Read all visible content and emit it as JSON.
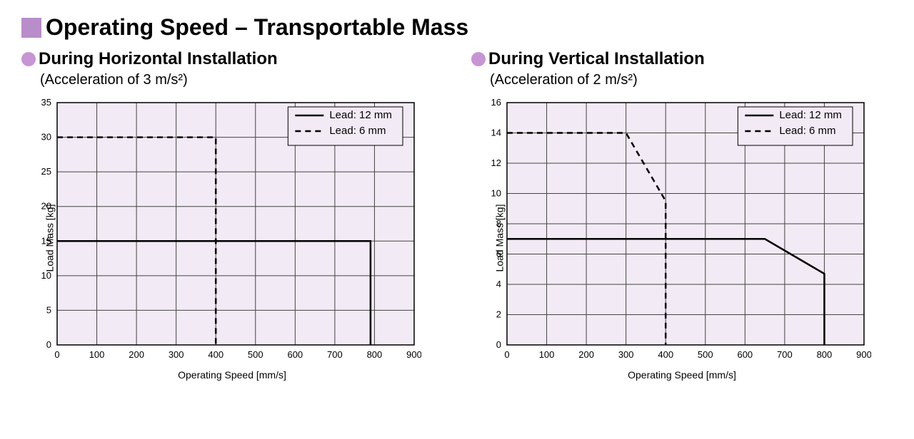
{
  "main_title": "Operating Speed – Transportable Mass",
  "bullet_square_color": "#b98dc9",
  "bullet_circle_color": "#c795d4",
  "background_color": "#ffffff",
  "plot_background": "#f2eaf4",
  "grid_color": "#444444",
  "axis_color": "#000000",
  "text_color": "#000000",
  "line_color": "#000000",
  "chart1": {
    "subtitle": "During Horizontal Installation",
    "subnote": "(Acceleration of 3 m/s²)",
    "type": "line",
    "xlabel": "Operating Speed [mm/s]",
    "ylabel": "Load Mass [kg]",
    "xlim": [
      0,
      900
    ],
    "ylim": [
      0,
      35
    ],
    "xtick_step": 100,
    "ytick_step": 5,
    "tick_fontsize": 13,
    "label_fontsize": 14,
    "line_width": 2.5,
    "dash_pattern": "8,6",
    "legend": {
      "x": 600,
      "y_top": 30,
      "items": [
        {
          "label": "Lead: 12 mm",
          "style": "solid"
        },
        {
          "label": "Lead: 6 mm",
          "style": "dashed"
        }
      ]
    },
    "series": [
      {
        "name": "Lead: 12 mm",
        "style": "solid",
        "points": [
          [
            0,
            15
          ],
          [
            790,
            15
          ],
          [
            790,
            0
          ]
        ]
      },
      {
        "name": "Lead: 6 mm",
        "style": "dashed",
        "points": [
          [
            0,
            30
          ],
          [
            400,
            30
          ],
          [
            400,
            0
          ]
        ]
      }
    ]
  },
  "chart2": {
    "subtitle": "During Vertical Installation",
    "subnote": "(Acceleration of 2 m/s²)",
    "type": "line",
    "xlabel": "Operating Speed [mm/s]",
    "ylabel": "Load Mass [kg]",
    "xlim": [
      0,
      900
    ],
    "ylim": [
      0,
      16
    ],
    "xtick_step": 100,
    "ytick_step": 2,
    "tick_fontsize": 13,
    "label_fontsize": 14,
    "line_width": 2.5,
    "dash_pattern": "8,6",
    "legend": {
      "x": 600,
      "y_top": 14,
      "items": [
        {
          "label": "Lead: 12 mm",
          "style": "solid"
        },
        {
          "label": "Lead: 6 mm",
          "style": "dashed"
        }
      ]
    },
    "series": [
      {
        "name": "Lead: 12 mm",
        "style": "solid",
        "points": [
          [
            0,
            7
          ],
          [
            650,
            7
          ],
          [
            800,
            4.7
          ],
          [
            800,
            0
          ]
        ]
      },
      {
        "name": "Lead: 6 mm",
        "style": "dashed",
        "points": [
          [
            0,
            14
          ],
          [
            300,
            14
          ],
          [
            400,
            9.5
          ],
          [
            400,
            0
          ]
        ]
      }
    ]
  }
}
